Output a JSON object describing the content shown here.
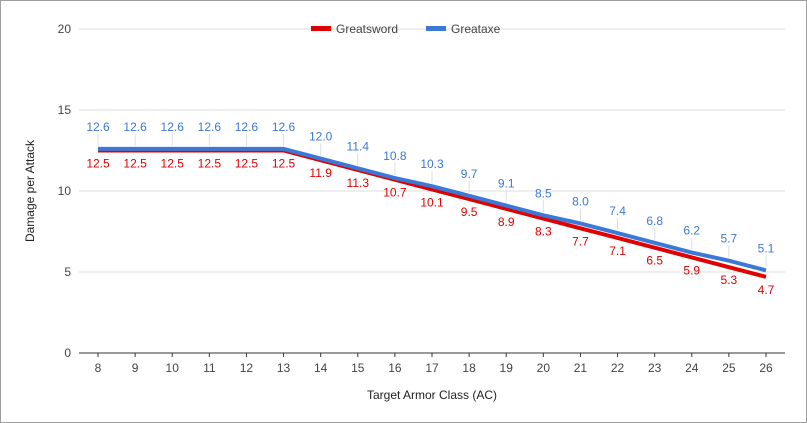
{
  "chart_data": {
    "type": "line",
    "title": "",
    "xlabel": "Target Armor Class (AC)",
    "ylabel": "Damage per Attack",
    "x": [
      8,
      9,
      10,
      11,
      12,
      13,
      14,
      15,
      16,
      17,
      18,
      19,
      20,
      21,
      22,
      23,
      24,
      25,
      26
    ],
    "ylim": [
      0,
      20
    ],
    "yticks": [
      0,
      5,
      10,
      15,
      20
    ],
    "grid": true,
    "legend": "top",
    "series": [
      {
        "name": "Greatsword",
        "color": "#e00000",
        "values": [
          12.5,
          12.5,
          12.5,
          12.5,
          12.5,
          12.5,
          11.9,
          11.3,
          10.7,
          10.1,
          9.5,
          8.9,
          8.3,
          7.7,
          7.1,
          6.5,
          5.9,
          5.3,
          4.7
        ]
      },
      {
        "name": "Greataxe",
        "color": "#3c78d8",
        "values": [
          12.6,
          12.6,
          12.6,
          12.6,
          12.6,
          12.6,
          12.0,
          11.4,
          10.8,
          10.3,
          9.7,
          9.1,
          8.5,
          8.0,
          7.4,
          6.8,
          6.2,
          5.7,
          5.1
        ]
      }
    ]
  }
}
